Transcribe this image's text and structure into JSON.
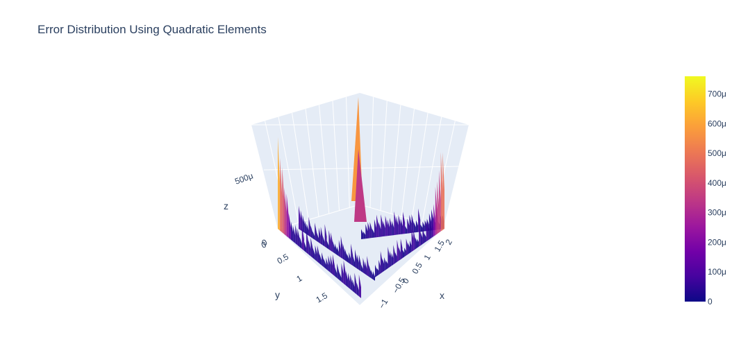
{
  "chart_data": {
    "type": "surface",
    "title": "Error Distribution Using Quadratic Elements",
    "xlabel": "x",
    "ylabel": "y",
    "zlabel": "z",
    "domain": "L-shaped region",
    "x_ticks": [
      "−1",
      "−0.5",
      "0",
      "0.5",
      "1",
      "1.5",
      "2"
    ],
    "y_ticks": [
      "0",
      "0.5",
      "1",
      "1.5"
    ],
    "z_ticks": [
      "0",
      "500μ"
    ],
    "colorbar": {
      "colorscale": "plasma",
      "range": [
        0,
        760
      ],
      "tick_labels": [
        "0",
        "100μ",
        "200μ",
        "300μ",
        "400μ",
        "500μ",
        "600μ",
        "700μ"
      ],
      "tick_values": [
        0,
        100,
        200,
        300,
        400,
        500,
        600,
        700
      ]
    },
    "colors": {
      "scene_bg": "#e5ecf6",
      "grid": "#ffffff",
      "colorscale": [
        "#0d0887",
        "#46039f",
        "#7201a8",
        "#9c179e",
        "#bd3786",
        "#d8576b",
        "#ed7953",
        "#fb9f3a",
        "#fdca26",
        "#f0f921"
      ]
    }
  }
}
